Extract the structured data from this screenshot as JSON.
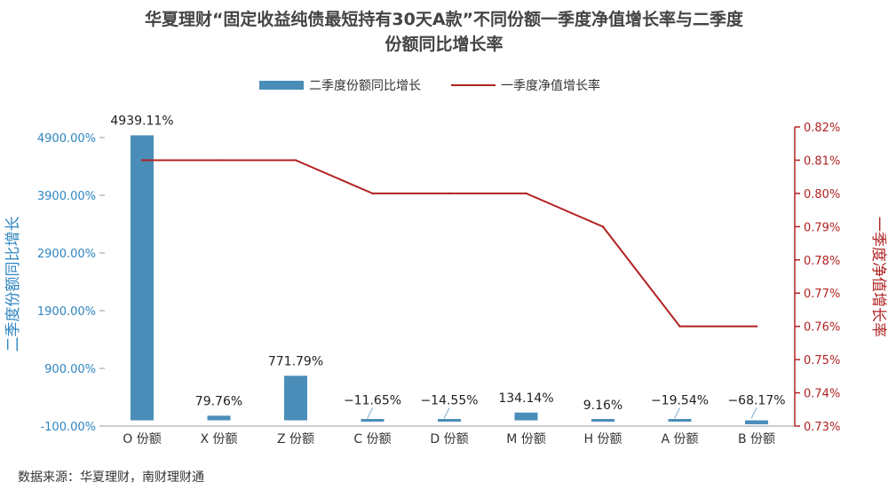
{
  "chart_data": {
    "type": "bar",
    "title": [
      "华夏理财“固定收益纯债最短持有30天A款”不同份额一季度净值增长率与二季度",
      "份额同比增长率"
    ],
    "categories": [
      "O 份额",
      "X 份额",
      "Z 份额",
      "C 份额",
      "D 份额",
      "M 份额",
      "H 份额",
      "A 份额",
      "B 份额"
    ],
    "series": [
      {
        "name": "二季度份额同比增长",
        "type": "bar",
        "axis": "left",
        "values": [
          4939.11,
          79.76,
          771.79,
          -11.65,
          -14.55,
          134.14,
          9.16,
          -19.54,
          -68.17
        ],
        "labels": [
          "4939.11%",
          "79.76%",
          "771.79%",
          "−11.65%",
          "−14.55%",
          "134.14%",
          "9.16%",
          "−19.54%",
          "−68.17%"
        ],
        "color": "#4A8DB8"
      },
      {
        "name": "一季度净值增长率",
        "type": "line",
        "axis": "right",
        "values": [
          0.81,
          0.81,
          0.81,
          0.8,
          0.8,
          0.8,
          0.79,
          0.76,
          0.76
        ],
        "color": "#B22222"
      }
    ],
    "y_left": {
      "label": "二季度份额同比增长",
      "ylim": [
        -100,
        4900
      ],
      "ticks": [
        -100,
        900,
        1900,
        2900,
        3900,
        4900
      ],
      "tick_labels": [
        "-100.00%",
        "900.00%",
        "1900.00%",
        "2900.00%",
        "3900.00%",
        "4900.00%"
      ]
    },
    "y_right": {
      "label": "一季度净值增长率",
      "ylim": [
        0.73,
        0.82
      ],
      "ticks": [
        0.73,
        0.74,
        0.75,
        0.76,
        0.77,
        0.78,
        0.79,
        0.8,
        0.81,
        0.82
      ],
      "tick_labels": [
        "0.73%",
        "0.74%",
        "0.75%",
        "0.76%",
        "0.77%",
        "0.78%",
        "0.79%",
        "0.80%",
        "0.81%",
        "0.82%"
      ]
    },
    "legend": "top-center",
    "grid": false
  },
  "source": "数据来源：华夏理财，南财理财通"
}
